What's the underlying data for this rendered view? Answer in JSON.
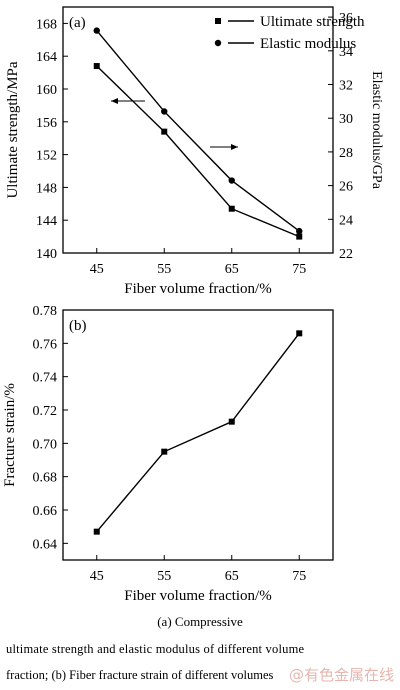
{
  "chart_data": [
    {
      "type": "line",
      "panel_label": "(a)",
      "xlabel": "Fiber volume fraction/%",
      "ylabel": "Ultimate strength/MPa",
      "y2label": "Elastic modulus/GPa",
      "x": [
        45,
        55,
        65,
        75
      ],
      "x_ticks": [
        "45",
        "55",
        "65",
        "75"
      ],
      "ylim": [
        140,
        170
      ],
      "y_ticks": [
        "140",
        "144",
        "148",
        "152",
        "156",
        "160",
        "164",
        "168"
      ],
      "y2lim": [
        22,
        36.6
      ],
      "y2_ticks": [
        "22",
        "24",
        "26",
        "28",
        "30",
        "32",
        "34",
        "36"
      ],
      "legend_position": "top-right",
      "series": [
        {
          "name": "Ultimate strength",
          "marker": "square",
          "axis": "left",
          "values": [
            162.8,
            154.8,
            145.4,
            142.0
          ]
        },
        {
          "name": "Elastic modulus",
          "marker": "circle",
          "axis": "right",
          "values": [
            35.2,
            30.4,
            26.3,
            23.3
          ]
        }
      ],
      "annotations": [
        "left arrow -> Ultimate strength axis",
        "right arrow -> Elastic modulus axis"
      ]
    },
    {
      "type": "line",
      "panel_label": "(b)",
      "xlabel": "Fiber volume fraction/%",
      "ylabel": "Fracture strain/%",
      "x": [
        45,
        55,
        65,
        75
      ],
      "x_ticks": [
        "45",
        "55",
        "65",
        "75"
      ],
      "ylim": [
        0.63,
        0.78
      ],
      "y_ticks": [
        "0.64",
        "0.66",
        "0.68",
        "0.70",
        "0.72",
        "0.74",
        "0.76",
        "0.78"
      ],
      "series": [
        {
          "marker": "square",
          "values": [
            0.647,
            0.695,
            0.713,
            0.766
          ]
        }
      ]
    }
  ],
  "captions": {
    "subfigure": "(a)  Compressive",
    "line1": "ultimate strength and elastic modulus of different volume",
    "line2": "fraction; (b) Fiber fracture strain of different volumes"
  },
  "watermark": "@有色金属在线",
  "colors": {
    "ink": "#000000",
    "watermark": "#e2a9a0"
  }
}
